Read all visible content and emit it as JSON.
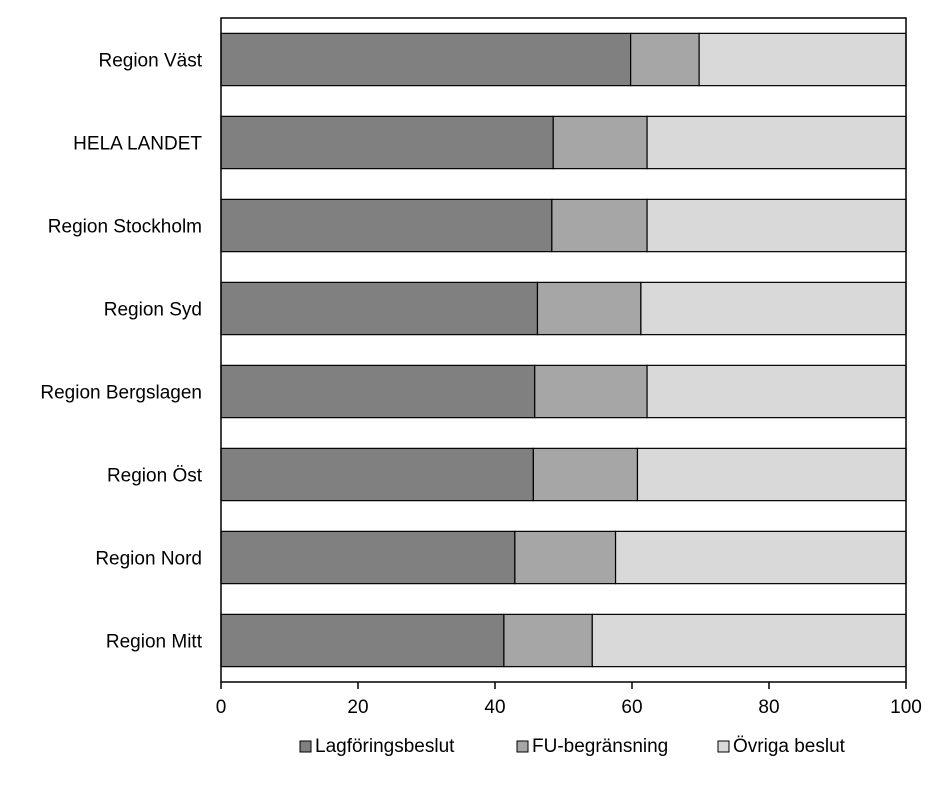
{
  "chart_data": {
    "type": "bar",
    "orientation": "horizontal",
    "stacked": true,
    "categories": [
      "Region Väst",
      "HELA LANDET",
      "Region Stockholm",
      "Region Syd",
      "Region Bergslagen",
      "Region Öst",
      "Region Nord",
      "Region Mitt"
    ],
    "series": [
      {
        "name": "Lagföringsbeslut",
        "color": "#808080",
        "values": [
          59.8,
          48.5,
          48.3,
          46.2,
          45.8,
          45.6,
          42.9,
          41.3
        ]
      },
      {
        "name": "FU-begränsning",
        "color": "#a6a6a6",
        "values": [
          10.0,
          13.7,
          13.9,
          15.1,
          16.4,
          15.2,
          14.7,
          12.9
        ]
      },
      {
        "name": "Övriga beslut",
        "color": "#d9d9d9",
        "values": [
          30.2,
          37.8,
          37.8,
          38.7,
          37.8,
          39.2,
          42.4,
          45.8
        ]
      }
    ],
    "xlim": [
      0,
      100
    ],
    "xticks": [
      0,
      20,
      40,
      60,
      80,
      100
    ],
    "title": "",
    "xlabel": "",
    "ylabel": "",
    "grid": false,
    "legend_position": "bottom"
  }
}
